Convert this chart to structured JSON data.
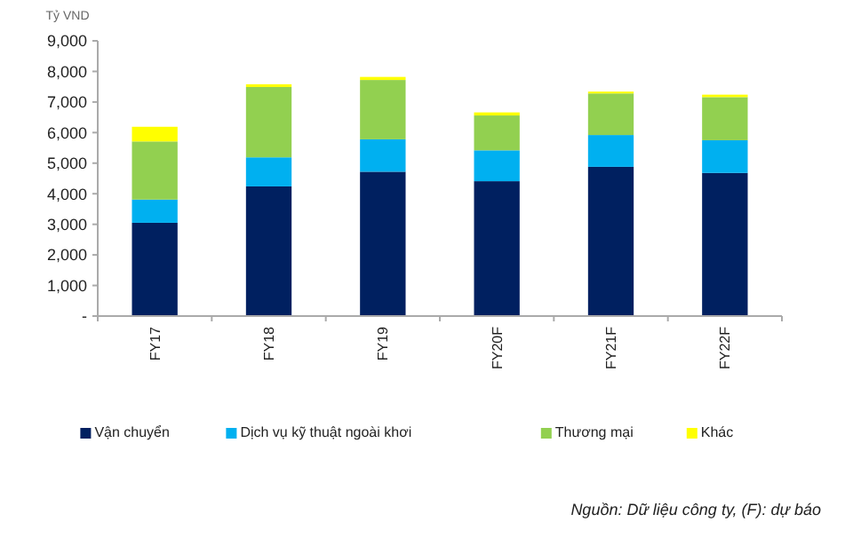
{
  "chart_data": {
    "type": "bar",
    "stacked": true,
    "ylabel": "Tỷ VND",
    "categories": [
      "FY17",
      "FY18",
      "FY19",
      "FY20F",
      "FY21F",
      "FY22F"
    ],
    "series": [
      {
        "name": "Vận chuyển",
        "color": "#002060",
        "values": [
          3050,
          4240,
          4720,
          4410,
          4880,
          4680
        ]
      },
      {
        "name": "Dịch vụ kỹ thuật ngoài khơi",
        "color": "#00b0f0",
        "values": [
          760,
          950,
          1060,
          1010,
          1040,
          1070
        ]
      },
      {
        "name": "Thương mại",
        "color": "#92d050",
        "values": [
          1900,
          2300,
          1940,
          1140,
          1360,
          1410
        ]
      },
      {
        "name": "Khác",
        "color": "#ffff00",
        "values": [
          480,
          90,
          100,
          100,
          60,
          80
        ]
      }
    ],
    "ylim": [
      0,
      9000
    ],
    "yticks": [
      {
        "value": 0,
        "label": "-"
      },
      {
        "value": 1000,
        "label": "1,000"
      },
      {
        "value": 2000,
        "label": "2,000"
      },
      {
        "value": 3000,
        "label": "3,000"
      },
      {
        "value": 4000,
        "label": "4,000"
      },
      {
        "value": 5000,
        "label": "5,000"
      },
      {
        "value": 6000,
        "label": "6,000"
      },
      {
        "value": 7000,
        "label": "7,000"
      },
      {
        "value": 8000,
        "label": "8,000"
      },
      {
        "value": 9000,
        "label": "9,000"
      }
    ],
    "grid": false,
    "legend": "bottom",
    "annotations": [
      "Nguồn: Dữ liệu công ty, (F): dự báo"
    ]
  }
}
